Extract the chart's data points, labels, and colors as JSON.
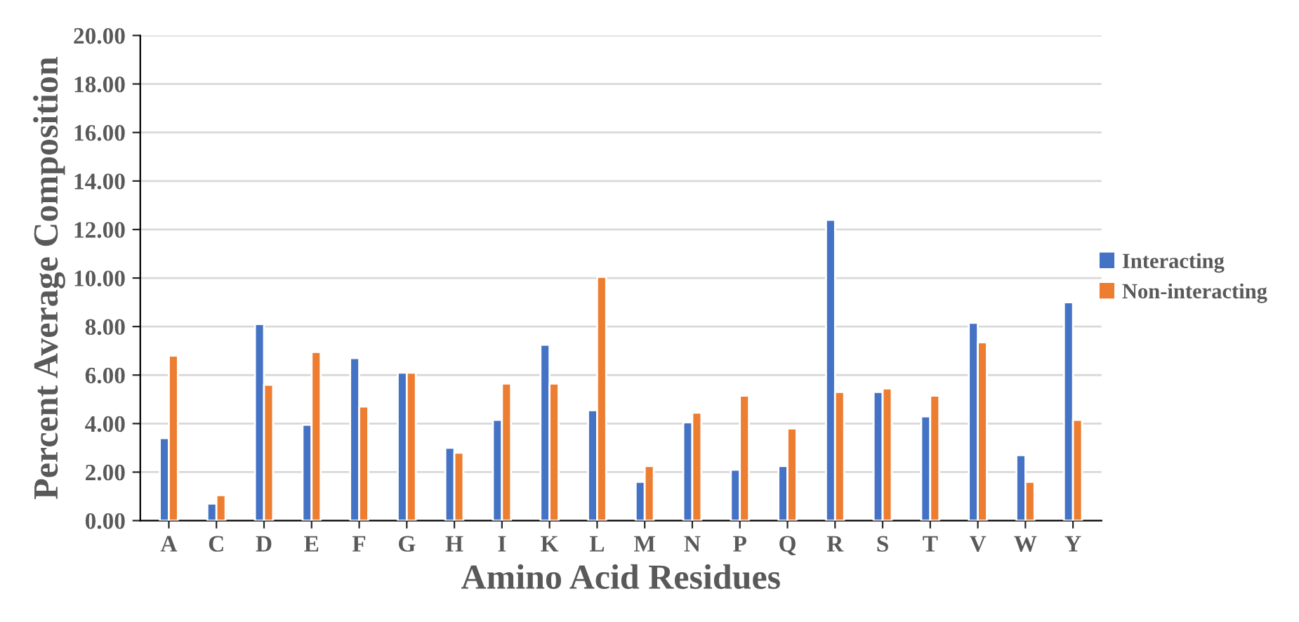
{
  "chart_data": {
    "type": "bar",
    "xlabel": "Amino Acid Residues",
    "ylabel": "Percent Average Composition",
    "categories": [
      "A",
      "C",
      "D",
      "E",
      "F",
      "G",
      "H",
      "I",
      "K",
      "L",
      "M",
      "N",
      "P",
      "Q",
      "R",
      "S",
      "T",
      "V",
      "W",
      "Y"
    ],
    "series": [
      {
        "name": "Interacting",
        "color": "#4472c4",
        "values": [
          3.4,
          0.7,
          8.1,
          3.95,
          6.7,
          6.1,
          3.0,
          4.15,
          7.25,
          4.55,
          1.6,
          4.05,
          2.1,
          2.25,
          12.4,
          5.3,
          4.3,
          8.15,
          2.7,
          9.0
        ]
      },
      {
        "name": "Non-interacting",
        "color": "#ed7d31",
        "values": [
          6.8,
          1.05,
          5.6,
          6.95,
          4.7,
          6.1,
          2.8,
          5.65,
          5.65,
          10.05,
          2.25,
          4.45,
          5.15,
          3.8,
          5.3,
          5.45,
          5.15,
          7.35,
          1.6,
          4.15
        ]
      }
    ],
    "ylim": [
      0,
      20
    ],
    "yticks": [
      {
        "value": 0,
        "label": "0.00"
      },
      {
        "value": 2,
        "label": "2.00"
      },
      {
        "value": 4,
        "label": "4.00"
      },
      {
        "value": 6,
        "label": "6.00"
      },
      {
        "value": 8,
        "label": "8.00"
      },
      {
        "value": 10,
        "label": "10.00"
      },
      {
        "value": 12,
        "label": "12.00"
      },
      {
        "value": 14,
        "label": "14.00"
      },
      {
        "value": 16,
        "label": "16.00"
      },
      {
        "value": 18,
        "label": "18.00"
      },
      {
        "value": 20,
        "label": "20.00"
      }
    ],
    "grid": "y",
    "legend": "right"
  }
}
